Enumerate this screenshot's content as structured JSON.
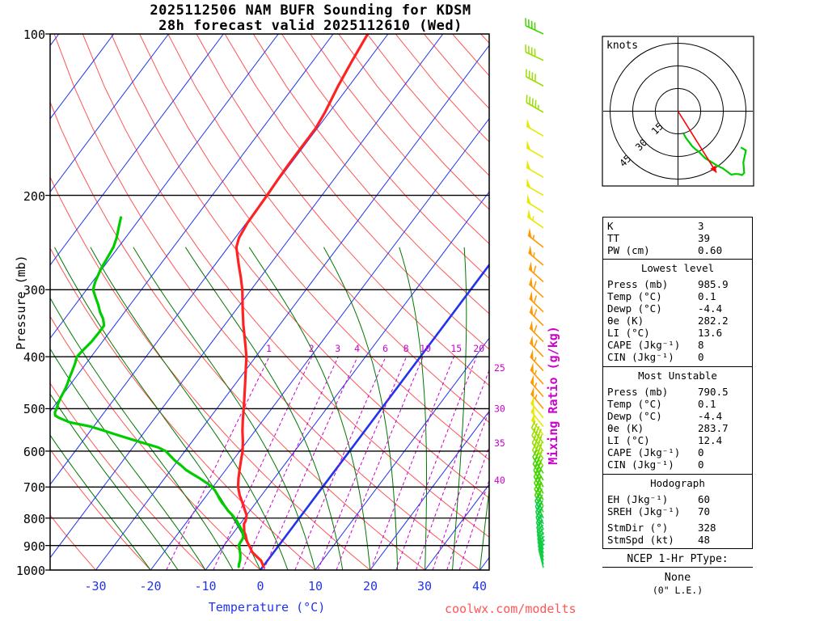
{
  "title": {
    "line1": "2025112506 NAM BUFR Sounding for KDSM",
    "line2": "28h forecast valid 2025112610 (Wed)"
  },
  "axis": {
    "pressure_label": "Pressure (mb)",
    "temp_label": "Temperature (°C)",
    "mixing_label": "Mixing Ratio (g/kg)",
    "pressure_ticks": [
      "100",
      "200",
      "300",
      "400",
      "500",
      "600",
      "700",
      "800",
      "900",
      "1000"
    ],
    "temp_ticks": [
      "-30",
      "-20",
      "-10",
      "0",
      "10",
      "20",
      "30",
      "40"
    ]
  },
  "watermark": "coolwx.com/modelts",
  "hodo": {
    "units": "knots",
    "ring_labels": [
      "15",
      "30",
      "45"
    ],
    "ring_radii_kt": [
      15,
      30,
      45
    ]
  },
  "stats": {
    "indices": {
      "rows": [
        {
          "label": "K",
          "value": "3"
        },
        {
          "label": "TT",
          "value": "39"
        },
        {
          "label": "PW (cm)",
          "value": "0.60"
        }
      ]
    },
    "lowest": {
      "header": "Lowest level",
      "rows": [
        {
          "label": "Press (mb)",
          "value": "985.9"
        },
        {
          "label": "Temp (°C)",
          "value": "0.1"
        },
        {
          "label": "Dewp (°C)",
          "value": "-4.4"
        },
        {
          "label": "θe (K)",
          "value": "282.2"
        },
        {
          "label": "LI (°C)",
          "value": "13.6"
        },
        {
          "label": "CAPE (Jkg⁻¹)",
          "value": "8"
        },
        {
          "label": "CIN (Jkg⁻¹)",
          "value": "0"
        }
      ]
    },
    "unstable": {
      "header": "Most Unstable",
      "rows": [
        {
          "label": "Press (mb)",
          "value": "790.5"
        },
        {
          "label": "Temp (°C)",
          "value": "0.1"
        },
        {
          "label": "Dewp (°C)",
          "value": "-4.4"
        },
        {
          "label": "θe (K)",
          "value": "283.7"
        },
        {
          "label": "LI (°C)",
          "value": "12.4"
        },
        {
          "label": "CAPE (Jkg⁻¹)",
          "value": "0"
        },
        {
          "label": "CIN (Jkg⁻¹)",
          "value": "0"
        }
      ]
    },
    "hodograph": {
      "header": "Hodograph",
      "rows": [
        {
          "label": "EH (Jkg⁻¹)",
          "value": "60"
        },
        {
          "label": "SREH (Jkg⁻¹)",
          "value": "70"
        }
      ],
      "rows2": [
        {
          "label": "StmDir (°)",
          "value": "328"
        },
        {
          "label": "StmSpd (kt)",
          "value": "48"
        }
      ]
    }
  },
  "ptype": {
    "title": "NCEP 1-Hr PType:",
    "value": "None",
    "note": "(0\" L.E.)"
  },
  "colors": {
    "isotherm": "#2233ee",
    "dry_adiabat": "#ff5555",
    "moist_adiabat": "#007700",
    "mixing_ratio": "#cc00cc",
    "pressure_line": "#000000",
    "temperature_curve": "#ff2222",
    "dewpoint_curve": "#00cc00",
    "watermark": "#ff5555",
    "storm_arrow": "#ff0000",
    "hodo_trace": "#00cc00",
    "wind_speed_palette": [
      {
        "min_kt": 55,
        "color": "#ff9900"
      },
      {
        "min_kt": 48,
        "color": "#e8e800"
      },
      {
        "min_kt": 42,
        "color": "#9ade00"
      },
      {
        "min_kt": 30,
        "color": "#44d400"
      },
      {
        "min_kt": 0,
        "color": "#11cc44"
      }
    ]
  },
  "chart_data": {
    "type": "line",
    "subtype": "skew-t log-p sounding",
    "title": "2025112506 NAM BUFR Sounding for KDSM, 28h forecast valid 2025112610 (Wed)",
    "pressure_axis_mb": {
      "min": 100,
      "max": 1000,
      "scale": "log",
      "ticks": [
        100,
        200,
        300,
        400,
        500,
        600,
        700,
        800,
        900,
        1000
      ]
    },
    "temp_axis_c": {
      "min": -40,
      "max": 45,
      "ticks": [
        -30,
        -20,
        -10,
        0,
        10,
        20,
        30,
        40
      ]
    },
    "isotherm_step_c": 10,
    "dry_adiabat_theta_c": {
      "min": -40,
      "max": 200,
      "step": 10
    },
    "moist_adiabat_thetaw_c": {
      "min": -20,
      "max": 40,
      "step": 5
    },
    "mixing_ratio_lines": [
      1,
      2,
      3,
      4,
      6,
      8,
      10,
      15,
      20,
      25,
      30,
      35,
      40
    ],
    "temperature_profile_p_t": [
      [
        985.9,
        0.1
      ],
      [
        975,
        -0.4
      ],
      [
        960,
        -1.2
      ],
      [
        950,
        -2.0
      ],
      [
        940,
        -2.8
      ],
      [
        925,
        -4.0
      ],
      [
        910,
        -4.8
      ],
      [
        900,
        -5.4
      ],
      [
        885,
        -6.3
      ],
      [
        875,
        -6.8
      ],
      [
        860,
        -7.5
      ],
      [
        850,
        -8.1
      ],
      [
        835,
        -8.7
      ],
      [
        820,
        -9.3
      ],
      [
        810,
        -9.4
      ],
      [
        800,
        -9.7
      ],
      [
        790,
        -10.0
      ],
      [
        775,
        -10.9
      ],
      [
        760,
        -11.8
      ],
      [
        750,
        -12.4
      ],
      [
        725,
        -14.0
      ],
      [
        700,
        -15.4
      ],
      [
        675,
        -16.5
      ],
      [
        650,
        -17.5
      ],
      [
        625,
        -18.5
      ],
      [
        600,
        -19.5
      ],
      [
        575,
        -20.8
      ],
      [
        550,
        -22.3
      ],
      [
        525,
        -23.7
      ],
      [
        500,
        -25.1
      ],
      [
        475,
        -26.6
      ],
      [
        450,
        -28.2
      ],
      [
        425,
        -29.9
      ],
      [
        400,
        -31.7
      ],
      [
        375,
        -34.0
      ],
      [
        350,
        -36.5
      ],
      [
        325,
        -39.0
      ],
      [
        300,
        -41.6
      ],
      [
        285,
        -43.5
      ],
      [
        270,
        -45.6
      ],
      [
        250,
        -48.5
      ],
      [
        240,
        -49.3
      ],
      [
        225,
        -49.8
      ],
      [
        200,
        -50.0
      ],
      [
        185,
        -50.2
      ],
      [
        175,
        -50.3
      ],
      [
        160,
        -50.3
      ],
      [
        150,
        -50.3
      ],
      [
        140,
        -50.8
      ],
      [
        125,
        -52.0
      ],
      [
        112,
        -52.9
      ],
      [
        100,
        -53.7
      ]
    ],
    "dewpoint_profile_p_t": [
      [
        985.9,
        -4.4
      ],
      [
        975,
        -4.7
      ],
      [
        960,
        -5.0
      ],
      [
        950,
        -5.3
      ],
      [
        935,
        -5.8
      ],
      [
        925,
        -6.2
      ],
      [
        910,
        -6.8
      ],
      [
        900,
        -7.3
      ],
      [
        890,
        -7.4
      ],
      [
        875,
        -7.5
      ],
      [
        865,
        -7.7
      ],
      [
        855,
        -8.2
      ],
      [
        850,
        -8.4
      ],
      [
        840,
        -9.0
      ],
      [
        825,
        -10.0
      ],
      [
        810,
        -11.0
      ],
      [
        800,
        -11.8
      ],
      [
        790,
        -12.6
      ],
      [
        775,
        -14.0
      ],
      [
        760,
        -15.2
      ],
      [
        750,
        -16.1
      ],
      [
        735,
        -17.3
      ],
      [
        725,
        -18.0
      ],
      [
        710,
        -19.2
      ],
      [
        700,
        -20.2
      ],
      [
        690,
        -21.4
      ],
      [
        675,
        -23.5
      ],
      [
        660,
        -25.8
      ],
      [
        650,
        -27.3
      ],
      [
        640,
        -28.5
      ],
      [
        625,
        -30.5
      ],
      [
        610,
        -32.3
      ],
      [
        600,
        -33.5
      ],
      [
        590,
        -35.5
      ],
      [
        575,
        -40.0
      ],
      [
        560,
        -44.5
      ],
      [
        550,
        -47.4
      ],
      [
        540,
        -50.5
      ],
      [
        530,
        -55.0
      ],
      [
        520,
        -57.5
      ],
      [
        515,
        -58.5
      ],
      [
        508,
        -59.0
      ],
      [
        500,
        -59.2
      ],
      [
        490,
        -59.6
      ],
      [
        475,
        -60.0
      ],
      [
        460,
        -60.3
      ],
      [
        450,
        -60.6
      ],
      [
        440,
        -61.0
      ],
      [
        425,
        -61.5
      ],
      [
        412,
        -62.0
      ],
      [
        400,
        -62.6
      ],
      [
        390,
        -62.4
      ],
      [
        375,
        -62.0
      ],
      [
        362,
        -61.9
      ],
      [
        350,
        -61.9
      ],
      [
        340,
        -63.0
      ],
      [
        330,
        -64.5
      ],
      [
        320,
        -65.8
      ],
      [
        310,
        -67.3
      ],
      [
        300,
        -68.8
      ],
      [
        290,
        -69.5
      ],
      [
        275,
        -70.2
      ],
      [
        260,
        -70.6
      ],
      [
        250,
        -70.9
      ],
      [
        240,
        -71.6
      ],
      [
        230,
        -72.6
      ],
      [
        220,
        -73.6
      ]
    ],
    "winds_p_dir_spd": [
      [
        100,
        295,
        40
      ],
      [
        112,
        295,
        42
      ],
      [
        125,
        298,
        42
      ],
      [
        140,
        300,
        45
      ],
      [
        155,
        300,
        48
      ],
      [
        170,
        300,
        50
      ],
      [
        185,
        300,
        50
      ],
      [
        200,
        300,
        52
      ],
      [
        215,
        302,
        52
      ],
      [
        230,
        305,
        54
      ],
      [
        250,
        308,
        55
      ],
      [
        270,
        310,
        56
      ],
      [
        290,
        312,
        58
      ],
      [
        310,
        313,
        60
      ],
      [
        330,
        314,
        60
      ],
      [
        350,
        315,
        60
      ],
      [
        375,
        315,
        58
      ],
      [
        400,
        316,
        58
      ],
      [
        425,
        317,
        56
      ],
      [
        450,
        318,
        56
      ],
      [
        475,
        319,
        55
      ],
      [
        500,
        320,
        55
      ],
      [
        520,
        320,
        52
      ],
      [
        540,
        321,
        50
      ],
      [
        560,
        322,
        48
      ],
      [
        580,
        323,
        46
      ],
      [
        600,
        324,
        45
      ],
      [
        620,
        325,
        44
      ],
      [
        640,
        326,
        42
      ],
      [
        660,
        327,
        40
      ],
      [
        680,
        328,
        38
      ],
      [
        700,
        330,
        36
      ],
      [
        720,
        331,
        35
      ],
      [
        740,
        332,
        32
      ],
      [
        760,
        333,
        30
      ],
      [
        780,
        334,
        30
      ],
      [
        800,
        335,
        28
      ],
      [
        820,
        336,
        28
      ],
      [
        840,
        337,
        26
      ],
      [
        860,
        338,
        25
      ],
      [
        880,
        339,
        22
      ],
      [
        900,
        340,
        22
      ],
      [
        915,
        341,
        20
      ],
      [
        930,
        342,
        20
      ],
      [
        945,
        343,
        18
      ],
      [
        960,
        344,
        18
      ],
      [
        975,
        345,
        15
      ],
      [
        990,
        346,
        15
      ]
    ],
    "hodograph_trace_uv_kt": [
      [
        3.6,
        -14.6
      ],
      [
        5.0,
        -17.3
      ],
      [
        6.2,
        -19.0
      ],
      [
        7.5,
        -20.7
      ],
      [
        9.4,
        -23.2
      ],
      [
        11.8,
        -25.4
      ],
      [
        13.6,
        -26.7
      ],
      [
        18.0,
        -31.2
      ],
      [
        21.8,
        -33.5
      ],
      [
        26.5,
        -36.4
      ],
      [
        29.6,
        -37.8
      ],
      [
        35.4,
        -42.1
      ],
      [
        37.5,
        -41.6
      ],
      [
        40.3,
        -41.7
      ],
      [
        42.4,
        -42.4
      ],
      [
        43.9,
        -40.9
      ],
      [
        43.3,
        -33.9
      ],
      [
        45.0,
        -26.0
      ],
      [
        41.6,
        -24.0
      ]
    ],
    "storm_motion": {
      "dir_deg": 328,
      "speed_kt": 48
    }
  }
}
